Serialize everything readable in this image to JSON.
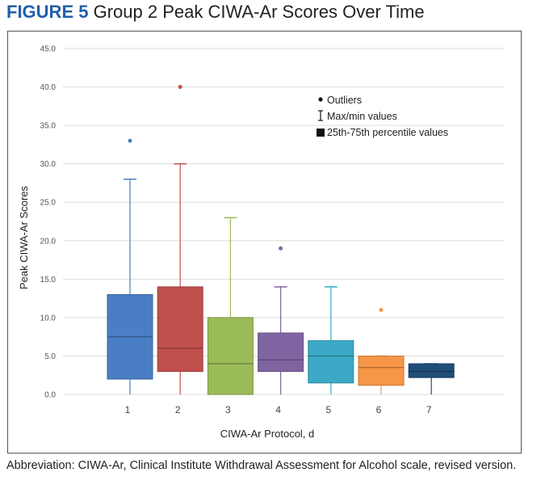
{
  "figure": {
    "label": "FIGURE 5",
    "title": "Group 2 Peak CIWA-Ar Scores Over Time"
  },
  "footnote": "Abbreviation: CIWA-Ar, Clinical Institute Withdrawal Assessment for Alcohol scale, revised version.",
  "chart_data": {
    "type": "box",
    "title": "Group 2 Peak CIWA-Ar Scores Over Time",
    "xlabel": "CIWA-Ar Protocol, d",
    "ylabel": "Peak CIWA-Ar Scores",
    "ylim": [
      0,
      45
    ],
    "yticks": [
      0,
      5,
      10,
      15,
      20,
      25,
      30,
      35,
      40,
      45
    ],
    "ytick_labels": [
      "0.0",
      "5.0",
      "10.0",
      "15.0",
      "20.0",
      "25.0",
      "30.0",
      "35.0",
      "40.0",
      "45.0"
    ],
    "grid": true,
    "legend": {
      "placement": "top-right",
      "items": [
        "Outliers",
        "Max/min values",
        "25th-75th percentile values"
      ]
    },
    "categories": [
      "1",
      "2",
      "3",
      "4",
      "5",
      "6",
      "7"
    ],
    "boxes": [
      {
        "category": "1",
        "min": 0,
        "q1": 2,
        "median": 7.5,
        "q3": 13,
        "max": 28,
        "outliers": [
          33
        ],
        "color": "#4a7ec4"
      },
      {
        "category": "2",
        "min": 0,
        "q1": 3,
        "median": 6,
        "q3": 14,
        "max": 30,
        "outliers": [
          40
        ],
        "color": "#c0504d"
      },
      {
        "category": "3",
        "min": 0,
        "q1": 0,
        "median": 4,
        "q3": 10,
        "max": 23,
        "outliers": [],
        "color": "#9bbb59"
      },
      {
        "category": "4",
        "min": 0,
        "q1": 3,
        "median": 4.5,
        "q3": 8,
        "max": 14,
        "outliers": [
          19
        ],
        "color": "#8064a2"
      },
      {
        "category": "5",
        "min": 0,
        "q1": 1.5,
        "median": 5,
        "q3": 7,
        "max": 14,
        "outliers": [],
        "color": "#3ba9c6"
      },
      {
        "category": "6",
        "min": 0,
        "q1": 1.2,
        "median": 3.5,
        "q3": 5,
        "max": 5,
        "outliers": [
          11
        ],
        "color": "#f79646"
      },
      {
        "category": "7",
        "min": 0,
        "q1": 2.2,
        "median": 3,
        "q3": 4,
        "max": 4,
        "outliers": [],
        "color": "#1f4e79"
      }
    ]
  }
}
